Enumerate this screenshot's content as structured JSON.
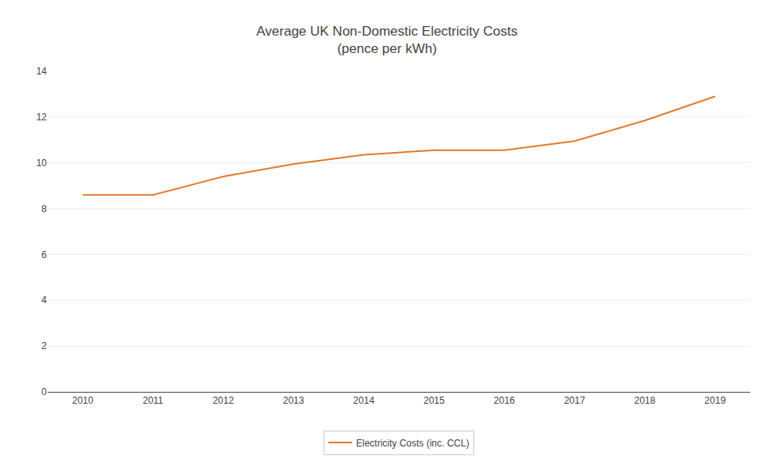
{
  "chart_data": {
    "type": "line",
    "title": "Average UK Non-Domestic Electricity Costs\n(pence per kWh)",
    "x": [
      2010,
      2011,
      2012,
      2013,
      2014,
      2015,
      2016,
      2017,
      2018,
      2019
    ],
    "series": [
      {
        "name": "Electricity Costs (inc. CCL)",
        "color": "#E07B2A",
        "values": [
          8.6,
          8.6,
          9.4,
          9.95,
          10.35,
          10.55,
          10.55,
          10.95,
          11.85,
          12.9
        ]
      }
    ],
    "xlim": [
      2009.5,
      2019.5
    ],
    "xticks": [
      2010,
      2011,
      2012,
      2013,
      2014,
      2015,
      2016,
      2017,
      2018,
      2019
    ],
    "ylim": [
      0,
      14
    ],
    "yticks": [
      0,
      2,
      4,
      6,
      8,
      10,
      12,
      14
    ],
    "grid": true,
    "legend": "bottom"
  }
}
